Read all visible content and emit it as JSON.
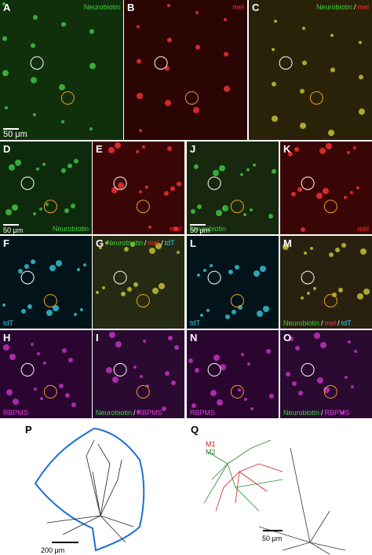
{
  "panels": [
    {
      "letter": "A",
      "label": [
        {
          "text": "Neurobiotin",
          "color": "#39d339"
        }
      ],
      "scale": "50 μm"
    },
    {
      "letter": "B",
      "label": [
        {
          "text": "mel",
          "color": "#ff3030"
        }
      ]
    },
    {
      "letter": "C",
      "label": [
        {
          "text": "Neurobiotin",
          "color": "#39d339"
        },
        {
          "text": "/",
          "color": "#ffffff"
        },
        {
          "text": "mel",
          "color": "#ff3030"
        }
      ]
    },
    {
      "letter": "D",
      "label": [
        {
          "text": "Neurobiotin",
          "color": "#39d339"
        }
      ],
      "scale": "50 μm"
    },
    {
      "letter": "E",
      "label": [
        {
          "text": "mel",
          "color": "#ff3030"
        }
      ]
    },
    {
      "letter": "J",
      "label": [
        {
          "text": "Neurobiotin",
          "color": "#39d339"
        }
      ],
      "scale": "50 μm"
    },
    {
      "letter": "K",
      "label": [
        {
          "text": "mel",
          "color": "#ff3030"
        }
      ]
    },
    {
      "letter": "F",
      "label": [
        {
          "text": "tdT",
          "color": "#30d0e0"
        }
      ]
    },
    {
      "letter": "G",
      "label": [
        {
          "text": "Neurobiotin",
          "color": "#39d339"
        },
        {
          "text": "/",
          "color": "#ffffff"
        },
        {
          "text": "mel",
          "color": "#ff3030"
        },
        {
          "text": "/",
          "color": "#ffffff"
        },
        {
          "text": "tdT",
          "color": "#30d0e0"
        }
      ]
    },
    {
      "letter": "L",
      "label": [
        {
          "text": "tdT",
          "color": "#30d0e0"
        }
      ]
    },
    {
      "letter": "M",
      "label": [
        {
          "text": "Neurobiotin",
          "color": "#39d339"
        },
        {
          "text": "/",
          "color": "#ffffff"
        },
        {
          "text": "mel",
          "color": "#ff3030"
        },
        {
          "text": "/",
          "color": "#ffffff"
        },
        {
          "text": "tdT",
          "color": "#30d0e0"
        }
      ]
    },
    {
      "letter": "H",
      "label": [
        {
          "text": "RBPMS",
          "color": "#e040e0"
        }
      ]
    },
    {
      "letter": "I",
      "label": [
        {
          "text": "Neurobiotin",
          "color": "#39d339"
        },
        {
          "text": "/",
          "color": "#ffffff"
        },
        {
          "text": "RBPMS",
          "color": "#e040e0"
        }
      ]
    },
    {
      "letter": "N",
      "label": [
        {
          "text": "RBPMS",
          "color": "#e040e0"
        }
      ]
    },
    {
      "letter": "O",
      "label": [
        {
          "text": "Neurobiotin",
          "color": "#39d339"
        },
        {
          "text": "/",
          "color": "#ffffff"
        },
        {
          "text": "RBPMS",
          "color": "#e040e0"
        }
      ]
    }
  ],
  "tracing_p": {
    "letter": "P",
    "scale": "200 μm"
  },
  "tracing_q": {
    "letter": "Q",
    "legend": [
      {
        "text": "M1",
        "color": "#cc2020"
      },
      {
        "text": "M2",
        "color": "#2a8a2a"
      }
    ],
    "scale": "50 μm"
  }
}
